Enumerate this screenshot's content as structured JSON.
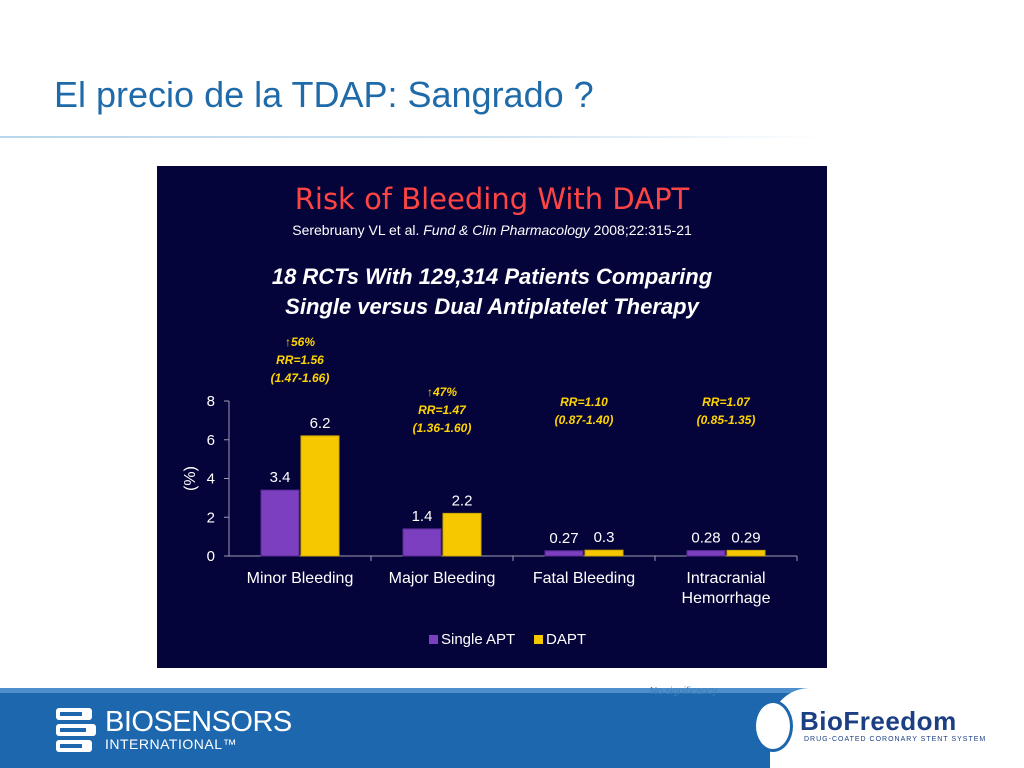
{
  "slide": {
    "title": "El precio de la TDAP: Sangrado ?"
  },
  "panel": {
    "title": "Risk of Bleeding With DAPT",
    "citation_author": "Serebruany VL et al. ",
    "citation_journal": "Fund & Clin Pharmacology",
    "citation_ref": " 2008;22:315-21",
    "subtitle_line1": "18 RCTs With 129,314 Patients Comparing",
    "subtitle_line2": "Single versus Dual Antiplatelet Therapy"
  },
  "chart_data": {
    "type": "bar",
    "categories": [
      "Minor Bleeding",
      "Major Bleeding",
      "Fatal Bleeding",
      "Intracranial Hemorrhage"
    ],
    "category_lines": [
      [
        "Minor Bleeding"
      ],
      [
        "Major Bleeding"
      ],
      [
        "Fatal Bleeding"
      ],
      [
        "Intracranial",
        "Hemorrhage"
      ]
    ],
    "series": [
      {
        "name": "Single APT",
        "values": [
          3.4,
          1.4,
          0.27,
          0.28
        ],
        "color": "#7b3fbf",
        "labels": [
          "3.4",
          "1.4",
          "0.27",
          "0.28"
        ]
      },
      {
        "name": "DAPT",
        "values": [
          6.2,
          2.2,
          0.3,
          0.29
        ],
        "color": "#f5c800",
        "labels": [
          "6.2",
          "2.2",
          "0.3",
          "0.29"
        ]
      }
    ],
    "ylabel": "(%)",
    "ylim": [
      0,
      8
    ],
    "yticks": [
      0,
      2,
      4,
      6,
      8
    ],
    "legend_position": "bottom",
    "annotations": [
      {
        "arrow": "↑",
        "lines": [
          "56%",
          "RR=1.56",
          "(1.47-1.66)"
        ]
      },
      {
        "arrow": "↑",
        "lines": [
          "47%",
          "RR=1.47",
          "(1.36-1.60)"
        ]
      },
      {
        "arrow": "",
        "lines": [
          "RR=1.10",
          "(0.87-1.40)"
        ]
      },
      {
        "arrow": "",
        "lines": [
          "RR=1.07",
          "(0.85-1.35)"
        ]
      }
    ],
    "annotation_color": "#ffd400"
  },
  "footer": {
    "brand_name": "BIOSENSORS",
    "brand_sub": "INTERNATIONAL™",
    "product_name": "BioFreedom",
    "product_sub": "DRUG-COATED CORONARY STENT SYSTEM",
    "ghost_text": "No significancy"
  },
  "colors": {
    "title": "#1f6aa8",
    "panel_bg": "#05043a",
    "panel_title": "#ff4444",
    "footer_bg": "#1c67ad"
  }
}
